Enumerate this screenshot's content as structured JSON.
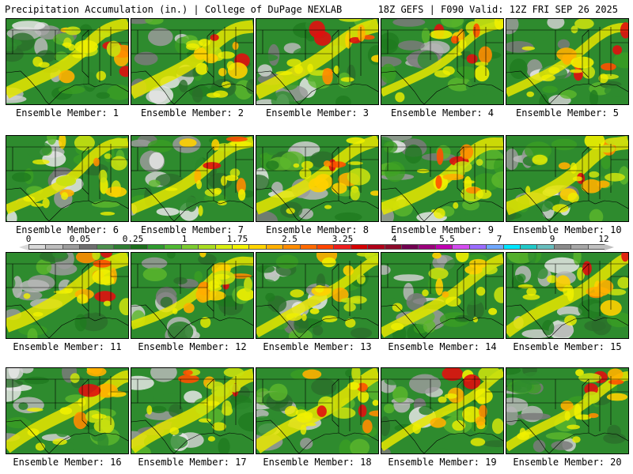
{
  "header": {
    "left": "Precipitation Accumulation (in.) | College of DuPage NEXLAB",
    "right": "18Z GEFS | F090 Valid: 12Z FRI SEP 26 2025"
  },
  "members": [
    {
      "label": "Ensemble Member: 1"
    },
    {
      "label": "Ensemble Member: 2"
    },
    {
      "label": "Ensemble Member: 3"
    },
    {
      "label": "Ensemble Member: 4"
    },
    {
      "label": "Ensemble Member: 5"
    },
    {
      "label": "Ensemble Member: 6"
    },
    {
      "label": "Ensemble Member: 7"
    },
    {
      "label": "Ensemble Member: 8"
    },
    {
      "label": "Ensemble Member: 9"
    },
    {
      "label": "Ensemble Member: 10"
    },
    {
      "label": "Ensemble Member: 11"
    },
    {
      "label": "Ensemble Member: 12"
    },
    {
      "label": "Ensemble Member: 13"
    },
    {
      "label": "Ensemble Member: 14"
    },
    {
      "label": "Ensemble Member: 15"
    },
    {
      "label": "Ensemble Member: 16"
    },
    {
      "label": "Ensemble Member: 17"
    },
    {
      "label": "Ensemble Member: 18"
    },
    {
      "label": "Ensemble Member: 19"
    },
    {
      "label": "Ensemble Member: 20"
    }
  ],
  "legend": {
    "labels": [
      "0",
      "0.05",
      "0.25",
      "1",
      "1.75",
      "2.5",
      "3.25",
      "4",
      "5.5",
      "7",
      "9",
      "12"
    ],
    "colors": [
      "#d9d9d9",
      "#bdbdbd",
      "#9c9c9c",
      "#6e6e6e",
      "#4d8f4d",
      "#2e7d32",
      "#1b6e1b",
      "#2e9a2e",
      "#4fb832",
      "#7ccc30",
      "#a8dc20",
      "#d8ee10",
      "#f2f200",
      "#ffd400",
      "#ffb000",
      "#ff8c00",
      "#ff6a00",
      "#ff4500",
      "#ee1c1c",
      "#d40000",
      "#b00018",
      "#8c0a2a",
      "#700050",
      "#9a007a",
      "#c000b0",
      "#d44cf0",
      "#9b6cff",
      "#6fa8ff",
      "#00e5ff",
      "#20c8c8",
      "#66bdbd",
      "#8a8a8a",
      "#a6a6a6",
      "#c0c0c0"
    ]
  }
}
